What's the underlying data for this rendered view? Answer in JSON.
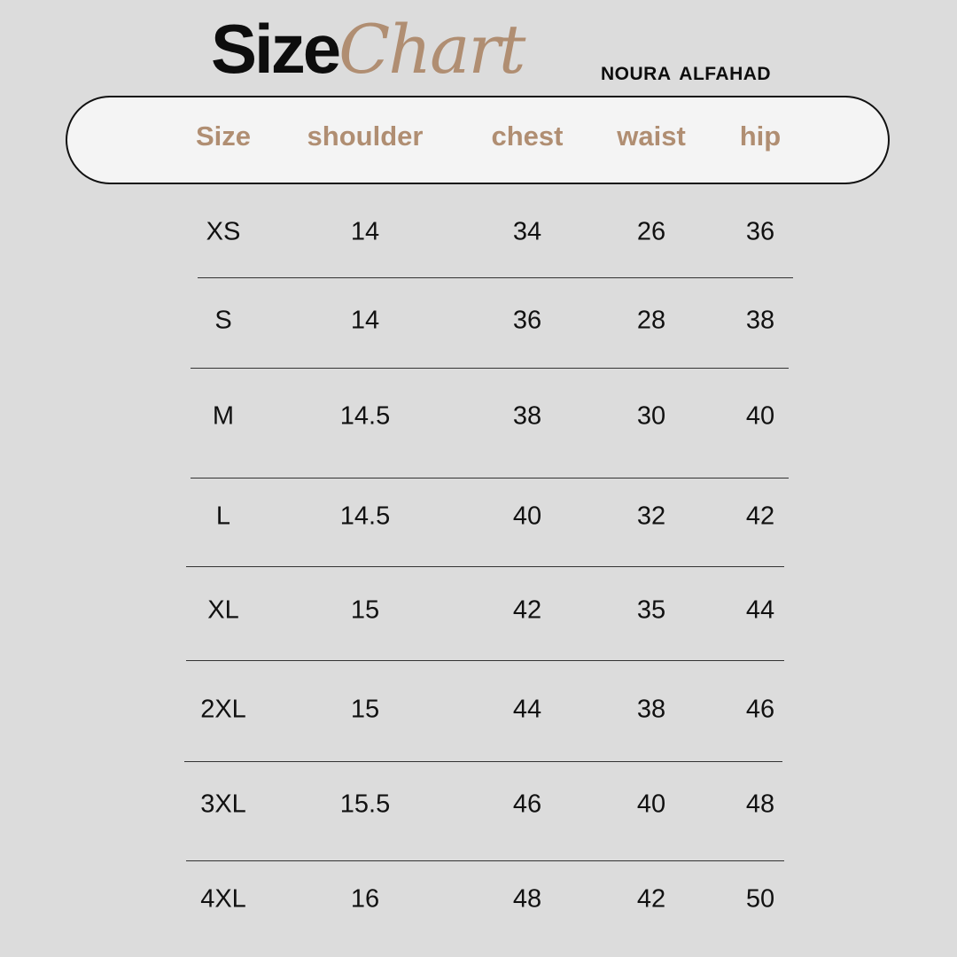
{
  "title": {
    "part1": "Size",
    "part2": "Chart"
  },
  "brand": "NOURA  ALFAHAD",
  "accent_color": "#b08e72",
  "columns": [
    "Size",
    "shoulder",
    "chest",
    "waist",
    "hip"
  ],
  "rows": [
    [
      "XS",
      "14",
      "34",
      "26",
      "36"
    ],
    [
      "S",
      "14",
      "36",
      "28",
      "38"
    ],
    [
      "M",
      "14.5",
      "38",
      "30",
      "40"
    ],
    [
      "L",
      "14.5",
      "40",
      "32",
      "42"
    ],
    [
      "XL",
      "15",
      "42",
      "35",
      "44"
    ],
    [
      "2XL",
      "15",
      "44",
      "38",
      "46"
    ],
    [
      "3XL",
      "15.5",
      "46",
      "40",
      "48"
    ],
    [
      "4XL",
      "16",
      "48",
      "42",
      "50"
    ]
  ]
}
